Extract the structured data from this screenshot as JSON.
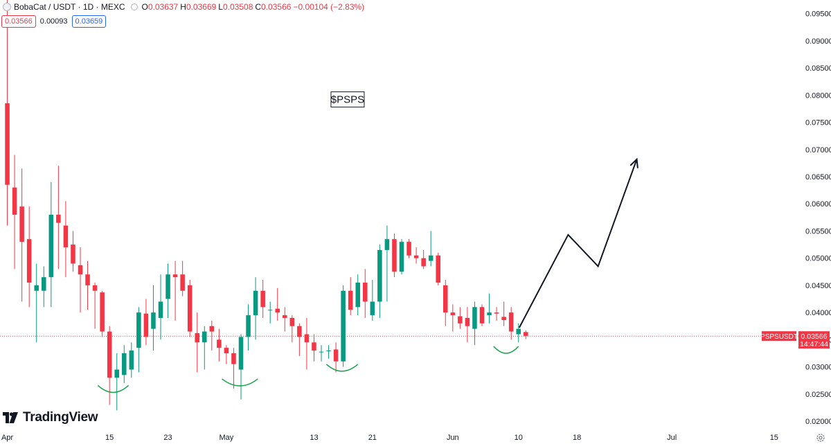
{
  "header": {
    "symbol": "BobaCat",
    "rest": " / USDT · 1D · MEXC",
    "ohlc": [
      {
        "label": "O",
        "value": "0.03637"
      },
      {
        "label": "H",
        "value": "0.03669"
      },
      {
        "label": "L",
        "value": "0.03508"
      },
      {
        "label": "C",
        "value": "0.03566"
      },
      {
        "label": "",
        "value": "−0.00104 (−2.83%)"
      }
    ],
    "bid": "0.03566",
    "spread": "0.00093",
    "ask": "0.03659"
  },
  "branding": {
    "name": "TradingView"
  },
  "chart_data": {
    "type": "candlestick",
    "title": "$PSPS",
    "ticker_label": "PSPSUSDT",
    "last_price": "0.03566",
    "countdown": "14:47:44",
    "ylim": [
      0.0195,
      0.0975
    ],
    "y_ticks": [
      0.02,
      0.025,
      0.03,
      0.035,
      0.04,
      0.045,
      0.05,
      0.055,
      0.06,
      0.065,
      0.07,
      0.075,
      0.08,
      0.085,
      0.09,
      0.095
    ],
    "y_tick_labels": [
      "0.02000",
      "0.02500",
      "0.03000",
      "0.03500",
      "0.04000",
      "0.04500",
      "0.05000",
      "0.05500",
      "0.06000",
      "0.06500",
      "0.07000",
      "0.07500",
      "0.08000",
      "0.08500",
      "0.09000",
      "0.09500"
    ],
    "x_start": "Apr 1",
    "x_ticks": [
      {
        "day": 0,
        "label": "Apr"
      },
      {
        "day": 14,
        "label": "15"
      },
      {
        "day": 22,
        "label": "23"
      },
      {
        "day": 30,
        "label": "May"
      },
      {
        "day": 42,
        "label": "13"
      },
      {
        "day": 50,
        "label": "21"
      },
      {
        "day": 61,
        "label": "Jun"
      },
      {
        "day": 70,
        "label": "10"
      },
      {
        "day": 78,
        "label": "18"
      },
      {
        "day": 91,
        "label": "Jul"
      },
      {
        "day": 105,
        "label": "15"
      }
    ],
    "x_range_days": [
      -1,
      109
    ],
    "candles": [
      {
        "o": 0.0785,
        "h": 0.0975,
        "l": 0.056,
        "c": 0.0635
      },
      {
        "o": 0.063,
        "h": 0.069,
        "l": 0.048,
        "c": 0.058
      },
      {
        "o": 0.0595,
        "h": 0.0665,
        "l": 0.042,
        "c": 0.053
      },
      {
        "o": 0.0535,
        "h": 0.0595,
        "l": 0.041,
        "c": 0.0455
      },
      {
        "o": 0.044,
        "h": 0.049,
        "l": 0.0345,
        "c": 0.045
      },
      {
        "o": 0.044,
        "h": 0.0485,
        "l": 0.041,
        "c": 0.0465
      },
      {
        "o": 0.0465,
        "h": 0.064,
        "l": 0.041,
        "c": 0.058
      },
      {
        "o": 0.058,
        "h": 0.067,
        "l": 0.048,
        "c": 0.0565
      },
      {
        "o": 0.056,
        "h": 0.0605,
        "l": 0.0465,
        "c": 0.052
      },
      {
        "o": 0.0525,
        "h": 0.055,
        "l": 0.0475,
        "c": 0.049
      },
      {
        "o": 0.0487,
        "h": 0.052,
        "l": 0.04,
        "c": 0.047
      },
      {
        "o": 0.047,
        "h": 0.0495,
        "l": 0.0405,
        "c": 0.045
      },
      {
        "o": 0.045,
        "h": 0.0455,
        "l": 0.037,
        "c": 0.044
      },
      {
        "o": 0.0437,
        "h": 0.044,
        "l": 0.0355,
        "c": 0.0365
      },
      {
        "o": 0.0365,
        "h": 0.0375,
        "l": 0.023,
        "c": 0.028
      },
      {
        "o": 0.028,
        "h": 0.0325,
        "l": 0.022,
        "c": 0.0295
      },
      {
        "o": 0.0285,
        "h": 0.034,
        "l": 0.027,
        "c": 0.0325
      },
      {
        "o": 0.0295,
        "h": 0.0345,
        "l": 0.028,
        "c": 0.033
      },
      {
        "o": 0.0335,
        "h": 0.041,
        "l": 0.029,
        "c": 0.04
      },
      {
        "o": 0.0398,
        "h": 0.0425,
        "l": 0.034,
        "c": 0.0355
      },
      {
        "o": 0.037,
        "h": 0.045,
        "l": 0.033,
        "c": 0.04
      },
      {
        "o": 0.039,
        "h": 0.047,
        "l": 0.035,
        "c": 0.042
      },
      {
        "o": 0.0425,
        "h": 0.049,
        "l": 0.039,
        "c": 0.047
      },
      {
        "o": 0.047,
        "h": 0.0495,
        "l": 0.0385,
        "c": 0.0465
      },
      {
        "o": 0.047,
        "h": 0.0495,
        "l": 0.043,
        "c": 0.044
      },
      {
        "o": 0.045,
        "h": 0.046,
        "l": 0.0355,
        "c": 0.0365
      },
      {
        "o": 0.0362,
        "h": 0.04,
        "l": 0.029,
        "c": 0.0345
      },
      {
        "o": 0.0345,
        "h": 0.0375,
        "l": 0.0295,
        "c": 0.0365
      },
      {
        "o": 0.0375,
        "h": 0.0385,
        "l": 0.033,
        "c": 0.0365
      },
      {
        "o": 0.035,
        "h": 0.037,
        "l": 0.031,
        "c": 0.0335
      },
      {
        "o": 0.0335,
        "h": 0.034,
        "l": 0.0305,
        "c": 0.0325
      },
      {
        "o": 0.0325,
        "h": 0.0335,
        "l": 0.026,
        "c": 0.0305
      },
      {
        "o": 0.0295,
        "h": 0.036,
        "l": 0.024,
        "c": 0.0355
      },
      {
        "o": 0.0355,
        "h": 0.0415,
        "l": 0.033,
        "c": 0.0395
      },
      {
        "o": 0.0395,
        "h": 0.0465,
        "l": 0.035,
        "c": 0.044
      },
      {
        "o": 0.044,
        "h": 0.046,
        "l": 0.039,
        "c": 0.041
      },
      {
        "o": 0.0405,
        "h": 0.042,
        "l": 0.038,
        "c": 0.0405
      },
      {
        "o": 0.0407,
        "h": 0.0445,
        "l": 0.0385,
        "c": 0.04
      },
      {
        "o": 0.0395,
        "h": 0.041,
        "l": 0.0365,
        "c": 0.039
      },
      {
        "o": 0.039,
        "h": 0.0395,
        "l": 0.0345,
        "c": 0.0375
      },
      {
        "o": 0.0375,
        "h": 0.038,
        "l": 0.032,
        "c": 0.0355
      },
      {
        "o": 0.036,
        "h": 0.039,
        "l": 0.0295,
        "c": 0.0345
      },
      {
        "o": 0.0345,
        "h": 0.036,
        "l": 0.031,
        "c": 0.033
      },
      {
        "o": 0.0328,
        "h": 0.034,
        "l": 0.031,
        "c": 0.0328
      },
      {
        "o": 0.033,
        "h": 0.034,
        "l": 0.0315,
        "c": 0.033
      },
      {
        "o": 0.0332,
        "h": 0.0345,
        "l": 0.029,
        "c": 0.031
      },
      {
        "o": 0.031,
        "h": 0.045,
        "l": 0.03,
        "c": 0.044
      },
      {
        "o": 0.044,
        "h": 0.0465,
        "l": 0.0395,
        "c": 0.0405
      },
      {
        "o": 0.041,
        "h": 0.047,
        "l": 0.0395,
        "c": 0.0455
      },
      {
        "o": 0.0455,
        "h": 0.048,
        "l": 0.039,
        "c": 0.042
      },
      {
        "o": 0.0395,
        "h": 0.046,
        "l": 0.0385,
        "c": 0.042
      },
      {
        "o": 0.042,
        "h": 0.0525,
        "l": 0.039,
        "c": 0.0515
      },
      {
        "o": 0.0515,
        "h": 0.056,
        "l": 0.042,
        "c": 0.0535
      },
      {
        "o": 0.0535,
        "h": 0.0545,
        "l": 0.0465,
        "c": 0.0475
      },
      {
        "o": 0.0475,
        "h": 0.0535,
        "l": 0.047,
        "c": 0.053
      },
      {
        "o": 0.053,
        "h": 0.0535,
        "l": 0.05,
        "c": 0.0505
      },
      {
        "o": 0.0505,
        "h": 0.052,
        "l": 0.049,
        "c": 0.05
      },
      {
        "o": 0.05,
        "h": 0.0515,
        "l": 0.048,
        "c": 0.0485
      },
      {
        "o": 0.0495,
        "h": 0.055,
        "l": 0.0485,
        "c": 0.0505
      },
      {
        "o": 0.0505,
        "h": 0.051,
        "l": 0.045,
        "c": 0.0455
      },
      {
        "o": 0.045,
        "h": 0.046,
        "l": 0.0375,
        "c": 0.04
      },
      {
        "o": 0.04,
        "h": 0.0415,
        "l": 0.0365,
        "c": 0.0395
      },
      {
        "o": 0.0393,
        "h": 0.041,
        "l": 0.037,
        "c": 0.038
      },
      {
        "o": 0.039,
        "h": 0.041,
        "l": 0.0345,
        "c": 0.0375
      },
      {
        "o": 0.037,
        "h": 0.042,
        "l": 0.034,
        "c": 0.041
      },
      {
        "o": 0.041,
        "h": 0.0415,
        "l": 0.0375,
        "c": 0.038
      },
      {
        "o": 0.0395,
        "h": 0.0435,
        "l": 0.038,
        "c": 0.04
      },
      {
        "o": 0.04,
        "h": 0.041,
        "l": 0.0385,
        "c": 0.0398
      },
      {
        "o": 0.0392,
        "h": 0.042,
        "l": 0.0375,
        "c": 0.0386
      },
      {
        "o": 0.04,
        "h": 0.041,
        "l": 0.035,
        "c": 0.0365
      },
      {
        "o": 0.036,
        "h": 0.038,
        "l": 0.0345,
        "c": 0.037
      },
      {
        "o": 0.0364,
        "h": 0.0367,
        "l": 0.0351,
        "c": 0.0357
      }
    ],
    "annotations": {
      "arrow_path_days_prices": [
        [
          70.1,
          0.0372
        ],
        [
          76.8,
          0.0543
        ],
        [
          80.9,
          0.0485
        ],
        [
          86.2,
          0.0682
        ]
      ],
      "bottom_arcs": [
        {
          "day_from": 12.4,
          "day_to": 16.6,
          "low": 0.0253
        },
        {
          "day_from": 29.4,
          "day_to": 34.3,
          "low": 0.0265
        },
        {
          "day_from": 43.7,
          "day_to": 48.0,
          "low": 0.0292
        },
        {
          "day_from": 66.6,
          "day_to": 70.0,
          "low": 0.0325
        }
      ]
    }
  }
}
